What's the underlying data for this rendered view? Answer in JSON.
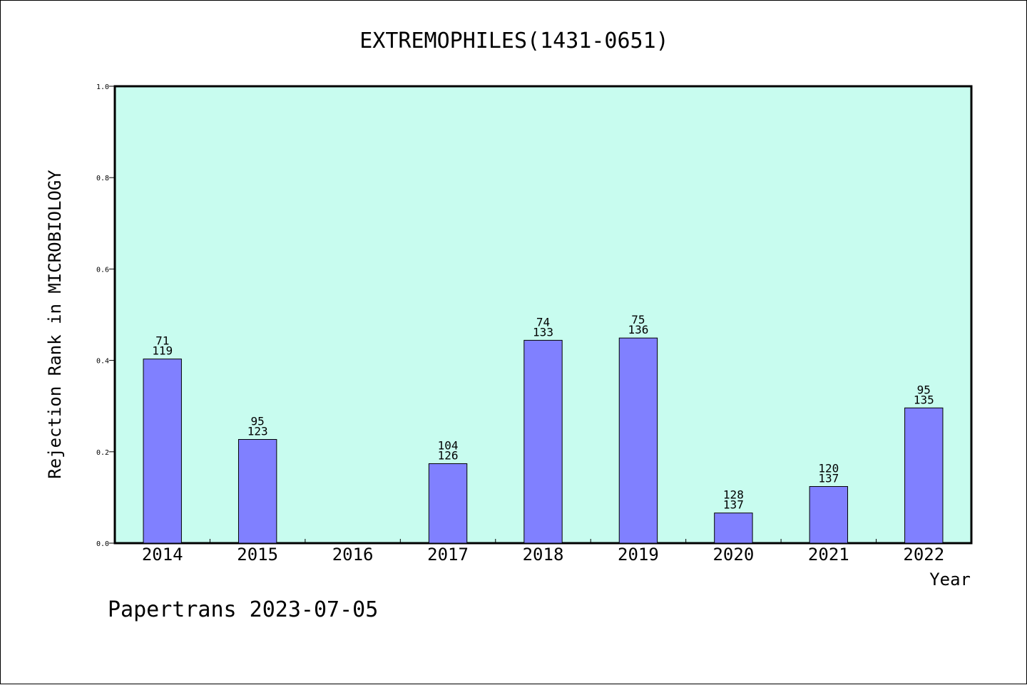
{
  "chart_data": {
    "type": "bar",
    "title": "EXTREMOPHILES(1431-0651)",
    "xlabel": "Year",
    "ylabel": "Rejection Rank in MICROBIOLOGY",
    "ylim": [
      0,
      1.0
    ],
    "yticks": [
      "0.0",
      "0.2",
      "0.4",
      "0.6",
      "0.8",
      "1.0"
    ],
    "categories": [
      "2014",
      "2015",
      "2016",
      "2017",
      "2018",
      "2019",
      "2020",
      "2021",
      "2022"
    ],
    "values": [
      0.403,
      0.227,
      null,
      0.174,
      0.444,
      0.449,
      0.066,
      0.124,
      0.296
    ],
    "labels_top": [
      "71",
      "95",
      "",
      "104",
      "74",
      "75",
      "128",
      "120",
      "95"
    ],
    "labels_bottom": [
      "119",
      "123",
      "",
      "126",
      "133",
      "136",
      "137",
      "137",
      "135"
    ],
    "legend": "none",
    "grid": false
  },
  "colors": {
    "plot_background": "#c8fcef",
    "bar_fill": "#8080ff",
    "bar_stroke": "#000000"
  },
  "footer": "Papertrans 2023-07-05"
}
